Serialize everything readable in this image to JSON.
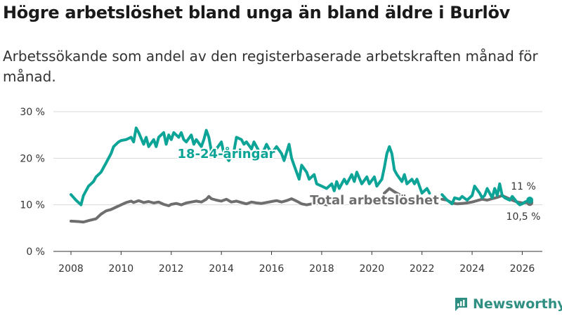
{
  "title": "Högre arbetslöshet bland unga än bland äldre i Burlöv",
  "subtitle": "Arbetssökande som andel av den registerbaserade arbetskraften månad för månad.",
  "brand": "Newsworthy",
  "colors": {
    "youth": "#0ca497",
    "total": "#6e6e6e",
    "grid": "#d9d9d9",
    "brand": "#2f8f82"
  },
  "chart_data": {
    "type": "line",
    "title": "Högre arbetslöshet bland unga än bland äldre i Burlöv",
    "xlabel": "",
    "ylabel": "",
    "xlim": [
      2007.3,
      2026.8
    ],
    "ylim": [
      0,
      30
    ],
    "x_ticks": [
      2008,
      2010,
      2012,
      2014,
      2016,
      2018,
      2020,
      2022,
      2024,
      2026
    ],
    "y_ticks": [
      {
        "value": 0,
        "label": "0 %"
      },
      {
        "value": 10,
        "label": "10 %"
      },
      {
        "value": 20,
        "label": "20 %"
      },
      {
        "value": 30,
        "label": "30 %"
      }
    ],
    "grid": true,
    "series": [
      {
        "name": "18-24-åringar",
        "label": "18-24-åringar",
        "end_label": "11 %",
        "color": "#0ca497",
        "points": [
          [
            2008.0,
            12.2
          ],
          [
            2008.2,
            11.0
          ],
          [
            2008.4,
            10.0
          ],
          [
            2008.5,
            12.0
          ],
          [
            2008.7,
            14.0
          ],
          [
            2008.9,
            15.0
          ],
          [
            2009.0,
            16.0
          ],
          [
            2009.2,
            17.0
          ],
          [
            2009.4,
            19.0
          ],
          [
            2009.6,
            21.0
          ],
          [
            2009.7,
            22.5
          ],
          [
            2009.9,
            23.5
          ],
          [
            2010.0,
            23.8
          ],
          [
            2010.2,
            24.0
          ],
          [
            2010.4,
            24.5
          ],
          [
            2010.5,
            23.5
          ],
          [
            2010.6,
            26.5
          ],
          [
            2010.7,
            25.5
          ],
          [
            2010.9,
            23.0
          ],
          [
            2011.0,
            24.5
          ],
          [
            2011.1,
            22.5
          ],
          [
            2011.3,
            24.0
          ],
          [
            2011.4,
            22.5
          ],
          [
            2011.5,
            24.5
          ],
          [
            2011.7,
            25.5
          ],
          [
            2011.8,
            23.0
          ],
          [
            2011.9,
            25.0
          ],
          [
            2012.0,
            24.0
          ],
          [
            2012.1,
            25.5
          ],
          [
            2012.3,
            24.5
          ],
          [
            2012.4,
            25.5
          ],
          [
            2012.5,
            24.0
          ],
          [
            2012.6,
            23.5
          ],
          [
            2012.8,
            25.0
          ],
          [
            2012.9,
            23.0
          ],
          [
            2013.0,
            24.0
          ],
          [
            2013.2,
            22.5
          ],
          [
            2013.3,
            24.0
          ],
          [
            2013.4,
            26.0
          ],
          [
            2013.5,
            24.5
          ],
          [
            2013.6,
            21.5
          ],
          [
            2013.8,
            22.0
          ],
          [
            2014.0,
            23.5
          ],
          [
            2014.1,
            21.0
          ],
          [
            2014.3,
            19.5
          ],
          [
            2014.5,
            21.5
          ],
          [
            2014.6,
            24.5
          ],
          [
            2014.8,
            24.0
          ],
          [
            2014.9,
            23.0
          ],
          [
            2015.0,
            23.5
          ],
          [
            2015.2,
            22.0
          ],
          [
            2015.3,
            23.5
          ],
          [
            2015.5,
            21.5
          ],
          [
            2015.6,
            20.5
          ],
          [
            2015.8,
            23.0
          ],
          [
            2016.0,
            21.0
          ],
          [
            2016.2,
            22.5
          ],
          [
            2016.4,
            21.0
          ],
          [
            2016.5,
            19.5
          ],
          [
            2016.7,
            23.0
          ],
          [
            2016.8,
            20.0
          ],
          [
            2016.9,
            18.5
          ],
          [
            2017.1,
            15.5
          ],
          [
            2017.2,
            18.5
          ],
          [
            2017.4,
            17.0
          ],
          [
            2017.5,
            15.5
          ],
          [
            2017.7,
            16.5
          ],
          [
            2017.8,
            14.5
          ],
          [
            2018.0,
            14.0
          ],
          [
            2018.2,
            13.5
          ],
          [
            2018.4,
            14.5
          ],
          [
            2018.5,
            13.0
          ],
          [
            2018.6,
            15.0
          ],
          [
            2018.7,
            13.5
          ],
          [
            2018.9,
            15.5
          ],
          [
            2019.0,
            14.5
          ],
          [
            2019.2,
            16.5
          ],
          [
            2019.3,
            15.0
          ],
          [
            2019.4,
            17.0
          ],
          [
            2019.6,
            14.5
          ],
          [
            2019.8,
            16.0
          ],
          [
            2019.9,
            14.5
          ],
          [
            2020.1,
            16.0
          ],
          [
            2020.2,
            14.0
          ],
          [
            2020.4,
            15.5
          ],
          [
            2020.5,
            18.0
          ],
          [
            2020.6,
            21.0
          ],
          [
            2020.7,
            22.5
          ],
          [
            2020.8,
            21.0
          ],
          [
            2020.9,
            17.5
          ],
          [
            2021.0,
            16.5
          ],
          [
            2021.2,
            15.0
          ],
          [
            2021.3,
            16.5
          ],
          [
            2021.4,
            14.5
          ],
          [
            2021.6,
            15.5
          ],
          [
            2021.7,
            14.5
          ],
          [
            2021.8,
            15.5
          ],
          [
            2021.9,
            14.0
          ],
          [
            2022.0,
            12.5
          ],
          [
            2022.2,
            13.5
          ],
          [
            2022.3,
            12.5
          ]
        ],
        "points_after_gap": [
          [
            2022.8,
            12.2
          ],
          [
            2023.0,
            11.0
          ],
          [
            2023.2,
            10.2
          ],
          [
            2023.3,
            11.5
          ],
          [
            2023.5,
            11.2
          ],
          [
            2023.6,
            11.8
          ],
          [
            2023.8,
            11.0
          ],
          [
            2024.0,
            12.0
          ],
          [
            2024.1,
            14.0
          ],
          [
            2024.3,
            12.5
          ],
          [
            2024.4,
            11.5
          ],
          [
            2024.5,
            12.0
          ],
          [
            2024.6,
            13.5
          ],
          [
            2024.8,
            11.5
          ],
          [
            2024.9,
            13.5
          ],
          [
            2025.0,
            12.0
          ],
          [
            2025.1,
            14.5
          ],
          [
            2025.2,
            12.0
          ],
          [
            2025.3,
            11.5
          ],
          [
            2025.5,
            11.0
          ],
          [
            2025.6,
            11.8
          ],
          [
            2025.8,
            10.5
          ],
          [
            2025.9,
            10.0
          ],
          [
            2026.0,
            10.2
          ],
          [
            2026.1,
            10.6
          ],
          [
            2026.3,
            11.0
          ]
        ]
      },
      {
        "name": "Total arbetslöshet",
        "label": "Total arbetslöshet",
        "end_label": "10,5 %",
        "color": "#6e6e6e",
        "points": [
          [
            2008.0,
            6.5
          ],
          [
            2008.3,
            6.4
          ],
          [
            2008.5,
            6.3
          ],
          [
            2008.7,
            6.6
          ],
          [
            2009.0,
            7.0
          ],
          [
            2009.2,
            8.0
          ],
          [
            2009.4,
            8.7
          ],
          [
            2009.6,
            9.0
          ],
          [
            2009.8,
            9.5
          ],
          [
            2010.0,
            10.0
          ],
          [
            2010.2,
            10.5
          ],
          [
            2010.4,
            10.8
          ],
          [
            2010.5,
            10.5
          ],
          [
            2010.7,
            10.9
          ],
          [
            2010.9,
            10.5
          ],
          [
            2011.1,
            10.7
          ],
          [
            2011.3,
            10.4
          ],
          [
            2011.5,
            10.6
          ],
          [
            2011.7,
            10.1
          ],
          [
            2011.9,
            9.8
          ],
          [
            2012.0,
            10.1
          ],
          [
            2012.2,
            10.3
          ],
          [
            2012.4,
            10.0
          ],
          [
            2012.6,
            10.4
          ],
          [
            2012.8,
            10.6
          ],
          [
            2013.0,
            10.8
          ],
          [
            2013.2,
            10.6
          ],
          [
            2013.4,
            11.2
          ],
          [
            2013.5,
            11.8
          ],
          [
            2013.6,
            11.3
          ],
          [
            2013.8,
            11.0
          ],
          [
            2014.0,
            10.8
          ],
          [
            2014.2,
            11.2
          ],
          [
            2014.4,
            10.6
          ],
          [
            2014.6,
            10.8
          ],
          [
            2014.8,
            10.5
          ],
          [
            2015.0,
            10.2
          ],
          [
            2015.2,
            10.6
          ],
          [
            2015.4,
            10.4
          ],
          [
            2015.6,
            10.3
          ],
          [
            2015.8,
            10.5
          ],
          [
            2016.0,
            10.7
          ],
          [
            2016.2,
            10.9
          ],
          [
            2016.4,
            10.6
          ],
          [
            2016.6,
            10.9
          ],
          [
            2016.8,
            11.3
          ],
          [
            2017.0,
            10.8
          ],
          [
            2017.2,
            10.2
          ],
          [
            2017.4,
            10.0
          ],
          [
            2017.6,
            10.2
          ],
          [
            2017.8,
            10.3
          ],
          [
            2018.0,
            10.2
          ],
          [
            2018.2,
            10.0
          ]
        ],
        "points_after_gap": [
          [
            2020.5,
            12.5
          ],
          [
            2020.7,
            13.5
          ],
          [
            2020.9,
            12.8
          ],
          [
            2021.1,
            12.2
          ]
        ],
        "points_after_gap_2": [
          [
            2022.8,
            11.2
          ],
          [
            2023.0,
            11.0
          ],
          [
            2023.2,
            10.4
          ],
          [
            2023.4,
            10.2
          ],
          [
            2023.6,
            10.3
          ],
          [
            2023.8,
            10.4
          ],
          [
            2024.0,
            10.6
          ],
          [
            2024.2,
            10.9
          ],
          [
            2024.4,
            11.2
          ],
          [
            2024.6,
            11.0
          ],
          [
            2024.8,
            11.3
          ],
          [
            2025.0,
            11.6
          ],
          [
            2025.2,
            12.0
          ],
          [
            2025.4,
            11.5
          ],
          [
            2025.6,
            11.0
          ],
          [
            2025.8,
            10.6
          ],
          [
            2026.0,
            10.4
          ],
          [
            2026.3,
            10.5
          ]
        ]
      }
    ]
  }
}
